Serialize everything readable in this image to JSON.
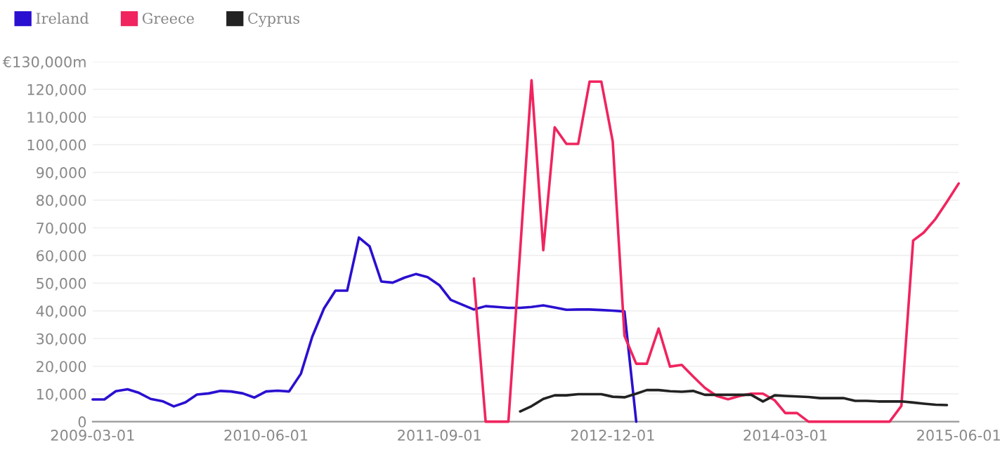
{
  "chart_data": {
    "type": "line",
    "series": [
      {
        "name": "Ireland",
        "color": "#2a10d0",
        "x": [
          "2009-03-01",
          "2009-04-01",
          "2009-05-01",
          "2009-06-01",
          "2009-07-01",
          "2009-08-01",
          "2009-09-01",
          "2009-10-01",
          "2009-11-01",
          "2009-12-01",
          "2010-01-01",
          "2010-02-01",
          "2010-03-01",
          "2010-04-01",
          "2010-05-01",
          "2010-06-01",
          "2010-07-01",
          "2010-08-01",
          "2010-09-01",
          "2010-10-01",
          "2010-11-01",
          "2010-12-01",
          "2011-01-01",
          "2011-02-01",
          "2011-03-01",
          "2011-04-01",
          "2011-05-01",
          "2011-06-01",
          "2011-07-01",
          "2011-08-01",
          "2011-09-01",
          "2011-10-01",
          "2011-11-01",
          "2011-12-01",
          "2012-01-01",
          "2012-02-01",
          "2012-03-01",
          "2012-04-01",
          "2012-05-01",
          "2012-06-01",
          "2012-07-01",
          "2012-08-01",
          "2012-09-01",
          "2012-10-01",
          "2012-11-01",
          "2012-12-01",
          "2013-01-01",
          "2013-02-01"
        ],
        "values": [
          8000,
          8000,
          11000,
          11700,
          10400,
          8200,
          7400,
          5500,
          7000,
          9800,
          10200,
          11100,
          10900,
          10200,
          8700,
          10900,
          11200,
          10900,
          17300,
          30700,
          40900,
          47300,
          47300,
          66500,
          63300,
          50600,
          50200,
          52000,
          53300,
          52200,
          49300,
          44000,
          42200,
          40500,
          41700,
          41400,
          41100,
          41100,
          41400,
          42000,
          41200,
          40400,
          40500,
          40500,
          40300,
          40100,
          39800,
          0
        ]
      },
      {
        "name": "Greece",
        "color": "#f0245e",
        "x": [
          "2011-12-01",
          "2012-01-01",
          "2012-02-01",
          "2012-03-01",
          "2012-04-01",
          "2012-05-01",
          "2012-06-01",
          "2012-07-01",
          "2012-08-01",
          "2012-09-01",
          "2012-10-01",
          "2012-11-01",
          "2012-12-01",
          "2013-01-01",
          "2013-02-01",
          "2013-03-01",
          "2013-04-01",
          "2013-05-01",
          "2013-06-01",
          "2013-07-01",
          "2013-08-01",
          "2013-09-01",
          "2013-10-01",
          "2013-11-01",
          "2013-12-01",
          "2014-01-01",
          "2014-02-01",
          "2014-03-01",
          "2014-04-01",
          "2014-05-01",
          "2014-06-01",
          "2014-07-01",
          "2014-08-01",
          "2014-09-01",
          "2014-10-01",
          "2014-11-01",
          "2014-12-01",
          "2015-01-01",
          "2015-02-01",
          "2015-03-01",
          "2015-04-01",
          "2015-05-01",
          "2015-06-01"
        ],
        "values": [
          51700,
          0,
          0,
          0,
          61700,
          123300,
          61900,
          106300,
          100300,
          100300,
          122800,
          122800,
          101200,
          31000,
          20900,
          20900,
          33600,
          19900,
          20500,
          16300,
          12200,
          9300,
          8100,
          9300,
          10100,
          10100,
          7700,
          3100,
          3100,
          0,
          0,
          0,
          0,
          0,
          0,
          0,
          0,
          5700,
          65400,
          68300,
          73200,
          79400,
          86000
        ]
      },
      {
        "name": "Cyprus",
        "color": "#222222",
        "x": [
          "2012-04-01",
          "2012-05-01",
          "2012-06-01",
          "2012-07-01",
          "2012-08-01",
          "2012-09-01",
          "2012-10-01",
          "2012-11-01",
          "2012-12-01",
          "2013-01-01",
          "2013-02-01",
          "2013-03-01",
          "2013-04-01",
          "2013-05-01",
          "2013-06-01",
          "2013-07-01",
          "2013-08-01",
          "2013-09-01",
          "2013-10-01",
          "2013-11-01",
          "2013-12-01",
          "2014-01-01",
          "2014-02-01",
          "2014-03-01",
          "2014-04-01",
          "2014-05-01",
          "2014-06-01",
          "2014-07-01",
          "2014-08-01",
          "2014-09-01",
          "2014-10-01",
          "2014-11-01",
          "2014-12-01",
          "2015-01-01",
          "2015-02-01",
          "2015-03-01",
          "2015-04-01",
          "2015-05-01"
        ],
        "values": [
          3700,
          5600,
          8200,
          9500,
          9500,
          9900,
          9900,
          9900,
          9000,
          8800,
          10100,
          11400,
          11400,
          11000,
          10800,
          11100,
          9700,
          9700,
          9700,
          9700,
          9700,
          7300,
          9500,
          9300,
          9100,
          8900,
          8500,
          8500,
          8500,
          7500,
          7500,
          7300,
          7300,
          7300,
          6900,
          6500,
          6100,
          6000
        ]
      }
    ],
    "xlim": [
      "2009-03-01",
      "2015-06-01"
    ],
    "xticks": [
      "2009-03-01",
      "2010-06-01",
      "2011-09-01",
      "2012-12-01",
      "2014-03-01",
      "2015-06-01"
    ],
    "ylim": [
      0,
      130000
    ],
    "yticks": [
      {
        "value": 0,
        "label": "0"
      },
      {
        "value": 10000,
        "label": "10,000"
      },
      {
        "value": 20000,
        "label": "20,000"
      },
      {
        "value": 30000,
        "label": "30,000"
      },
      {
        "value": 40000,
        "label": "40,000"
      },
      {
        "value": 50000,
        "label": "50,000"
      },
      {
        "value": 60000,
        "label": "60,000"
      },
      {
        "value": 70000,
        "label": "70,000"
      },
      {
        "value": 80000,
        "label": "80,000"
      },
      {
        "value": 90000,
        "label": "90,000"
      },
      {
        "value": 100000,
        "label": "100,000"
      },
      {
        "value": 110000,
        "label": "110,000"
      },
      {
        "value": 120000,
        "label": "120,000"
      },
      {
        "value": 130000,
        "label": "€130,000m"
      }
    ],
    "grid": "y",
    "legend": "top left",
    "marker": "none",
    "line_style": "solid"
  }
}
